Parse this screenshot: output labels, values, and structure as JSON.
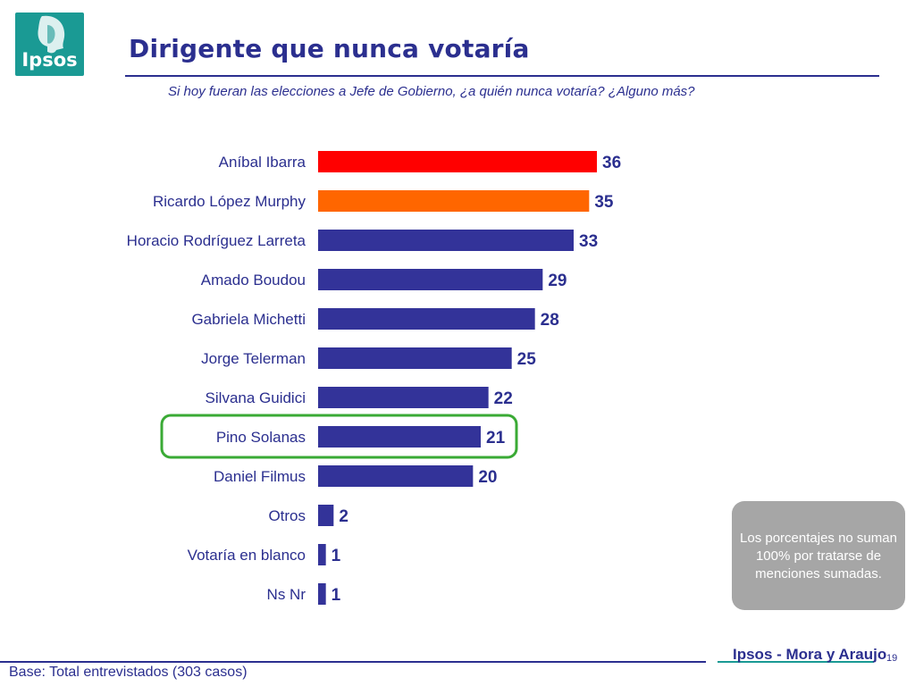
{
  "header": {
    "logo_text": "Ipsos",
    "title": "Dirigente que nunca votaría",
    "subtitle": "Si hoy fueran las elecciones a Jefe de Gobierno, ¿a quién nunca votaría? ¿Alguno más?"
  },
  "chart_data": {
    "type": "bar",
    "orientation": "horizontal",
    "categories": [
      "Aníbal Ibarra",
      "Ricardo López Murphy",
      "Horacio Rodríguez Larreta",
      "Amado Boudou",
      "Gabriela Michetti",
      "Jorge Telerman",
      "Silvana Guidici",
      "Pino Solanas",
      "Daniel Filmus",
      "Otros",
      "Votaría en blanco",
      "Ns Nr"
    ],
    "values": [
      36,
      35,
      33,
      29,
      28,
      25,
      22,
      21,
      20,
      2,
      1,
      1
    ],
    "bar_colors": [
      "#ff0000",
      "#ff6600",
      "#333399",
      "#333399",
      "#333399",
      "#333399",
      "#333399",
      "#333399",
      "#333399",
      "#333399",
      "#333399",
      "#333399"
    ],
    "highlighted_category": "Pino Solanas",
    "highlight_color": "#3aaa35",
    "data_labels": true,
    "grid": false,
    "xlim": [
      0,
      36
    ]
  },
  "note": "Los porcentajes no suman 100% por tratarse de menciones sumadas.",
  "footer": {
    "base": "Base: Total entrevistados (303 casos)",
    "brand": "Ipsos - Mora y Araujo",
    "page_number": "19"
  },
  "colors": {
    "primary": "#2b2f8f",
    "teal": "#1a9a94",
    "bar_default": "#333399"
  }
}
